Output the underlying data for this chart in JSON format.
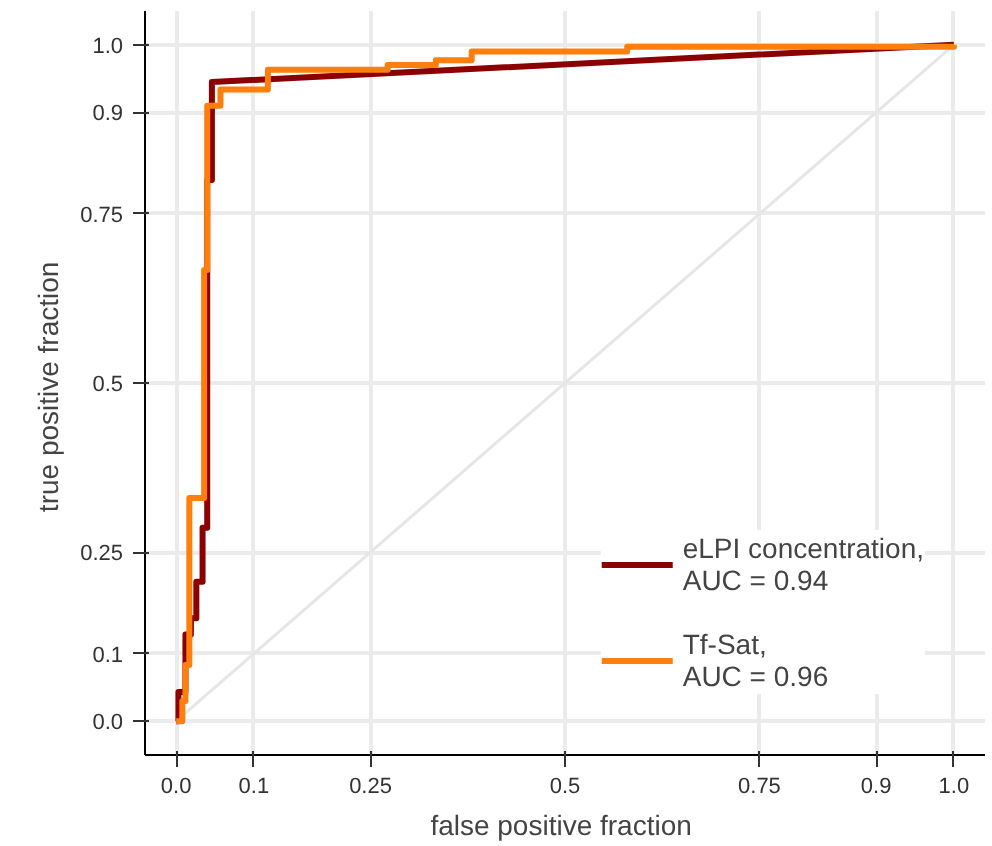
{
  "chart_data": {
    "type": "line",
    "xlabel": "false positive  fraction",
    "ylabel": "true positive  fraction",
    "xlim": [
      -0.04,
      1.04
    ],
    "ylim": [
      -0.05,
      1.05
    ],
    "xticks": [
      {
        "value": 0,
        "label": "0.0"
      },
      0.1,
      0.25,
      0.5,
      0.75,
      0.9,
      {
        "value": 1,
        "label": "1.0"
      }
    ],
    "yticks": [
      {
        "value": 0,
        "label": "0.0"
      },
      0.1,
      0.25,
      0.5,
      0.75,
      0.9,
      {
        "value": 1,
        "label": "1.0"
      }
    ],
    "grid": true,
    "legend": "bottom right",
    "series": [
      {
        "color": "#e6e6e6",
        "x": [
          0,
          1
        ],
        "values": [
          0,
          1
        ]
      },
      {
        "name": "eLPI concentration,\nAUC = 0.94",
        "color": "#8b0000",
        "x": [
          0,
          0.003,
          0.003,
          0.012,
          0.012,
          0.019,
          0.019,
          0.026,
          0.026,
          0.034,
          0.034,
          0.04,
          0.04,
          0.046,
          0.046,
          1.0
        ],
        "values": [
          0,
          0,
          0.043,
          0.043,
          0.128,
          0.128,
          0.152,
          0.152,
          0.206,
          0.206,
          0.286,
          0.286,
          0.8,
          0.8,
          0.945,
          1.0
        ]
      },
      {
        "name": "Tf-Sat,\nAUC = 0.96",
        "color": "#ff7f0e",
        "x": [
          0,
          0.008,
          0.008,
          0.012,
          0.012,
          0.017,
          0.017,
          0.036,
          0.036,
          0.04,
          0.04,
          0.057,
          0.057,
          0.118,
          0.118,
          0.272,
          0.272,
          0.334,
          0.334,
          0.38,
          0.38,
          0.58,
          0.58,
          1.0,
          1.0
        ],
        "values": [
          0,
          0,
          0.03,
          0.03,
          0.083,
          0.083,
          0.33,
          0.33,
          0.667,
          0.667,
          0.91,
          0.91,
          0.934,
          0.934,
          0.963,
          0.963,
          0.97,
          0.97,
          0.977,
          0.977,
          0.99,
          0.99,
          0.997,
          0.997,
          1.0
        ]
      }
    ]
  }
}
